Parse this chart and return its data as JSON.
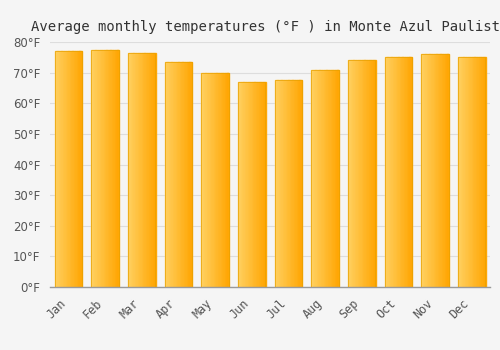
{
  "title": "Average monthly temperatures (°F ) in Monte Azul Paulista",
  "months": [
    "Jan",
    "Feb",
    "Mar",
    "Apr",
    "May",
    "Jun",
    "Jul",
    "Aug",
    "Sep",
    "Oct",
    "Nov",
    "Dec"
  ],
  "values": [
    77,
    77.5,
    76.5,
    73.5,
    70,
    67,
    67.5,
    71,
    74,
    75,
    76,
    75
  ],
  "bar_color_left": "#FFD060",
  "bar_color_right": "#FFA500",
  "bar_edge_color": "#E8A000",
  "ylim": [
    0,
    80
  ],
  "yticks": [
    0,
    10,
    20,
    30,
    40,
    50,
    60,
    70,
    80
  ],
  "background_color": "#F5F5F5",
  "grid_color": "#DDDDDD",
  "title_fontsize": 10,
  "tick_fontsize": 8.5,
  "bar_width": 0.75
}
